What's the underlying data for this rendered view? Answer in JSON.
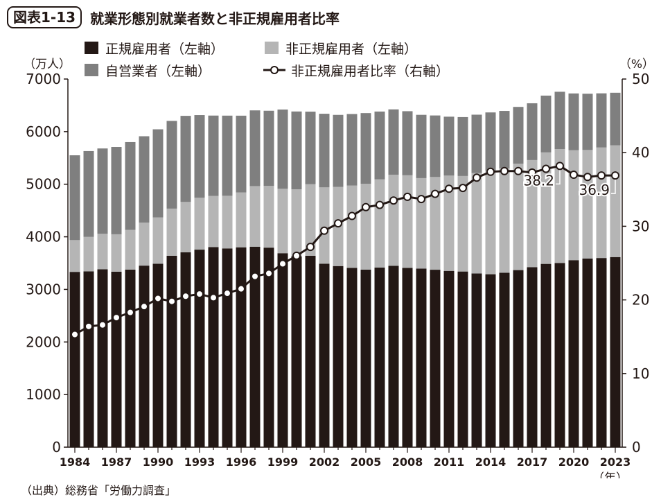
{
  "figure": {
    "badge": "図表1-13",
    "title": "就業形態別就業者数と非正規雇用者比率",
    "source": "（出典）総務省「労働力調査」"
  },
  "colors": {
    "regular": "#231815",
    "nonregular": "#b5b5b5",
    "selfemployed": "#7f7f7f",
    "ratio_line": "#231815"
  },
  "chart_data": {
    "type": "bar",
    "stacked": true,
    "left_axis": {
      "unit_label": "（万人）",
      "ylim": [
        0,
        7000
      ],
      "ticks": [
        0,
        1000,
        2000,
        3000,
        4000,
        5000,
        6000,
        7000
      ]
    },
    "right_axis": {
      "unit_label": "（%）",
      "ylim": [
        0,
        50
      ],
      "ticks": [
        0,
        10,
        20,
        30,
        40,
        50
      ]
    },
    "x_unit_label": "（年）",
    "x_tick_labels": [
      "1984",
      "1987",
      "1990",
      "1993",
      "1996",
      "1999",
      "2002",
      "2005",
      "2008",
      "2011",
      "2014",
      "2017",
      "2020",
      "2023"
    ],
    "legend_position": "top",
    "x": [
      1984,
      1985,
      1986,
      1987,
      1988,
      1989,
      1990,
      1991,
      1992,
      1993,
      1994,
      1995,
      1996,
      1997,
      1998,
      1999,
      2000,
      2001,
      2002,
      2003,
      2004,
      2005,
      2006,
      2007,
      2008,
      2009,
      2010,
      2011,
      2012,
      2013,
      2014,
      2015,
      2016,
      2017,
      2018,
      2019,
      2020,
      2021,
      2022,
      2023
    ],
    "series": [
      {
        "name": "正規雇用者（左軸）",
        "axis": "left",
        "kind": "bar",
        "values": [
          3333,
          3343,
          3383,
          3337,
          3377,
          3452,
          3488,
          3639,
          3705,
          3756,
          3805,
          3779,
          3800,
          3812,
          3794,
          3688,
          3630,
          3640,
          3489,
          3444,
          3410,
          3375,
          3415,
          3449,
          3410,
          3395,
          3374,
          3352,
          3340,
          3302,
          3288,
          3317,
          3367,
          3423,
          3485,
          3503,
          3556,
          3587,
          3597,
          3615
        ]
      },
      {
        "name": "非正規雇用者（左軸）",
        "axis": "left",
        "kind": "bar",
        "values": [
          604,
          655,
          674,
          711,
          755,
          817,
          881,
          897,
          958,
          986,
          971,
          1001,
          1043,
          1152,
          1173,
          1225,
          1273,
          1360,
          1451,
          1504,
          1564,
          1634,
          1677,
          1732,
          1760,
          1721,
          1763,
          1812,
          1816,
          1910,
          1967,
          1986,
          2023,
          2036,
          2120,
          2165,
          2090,
          2064,
          2101,
          2124
        ]
      },
      {
        "name": "自営業者（左軸）",
        "axis": "left",
        "kind": "bar",
        "values": [
          1613,
          1632,
          1623,
          1660,
          1669,
          1643,
          1675,
          1668,
          1637,
          1572,
          1529,
          1524,
          1460,
          1440,
          1430,
          1507,
          1480,
          1380,
          1400,
          1370,
          1361,
          1343,
          1290,
          1242,
          1218,
          1203,
          1170,
          1120,
          1120,
          1110,
          1110,
          1090,
          1080,
          1080,
          1080,
          1090,
          1080,
          1070,
          1030,
          1000
        ]
      },
      {
        "name": "非正規雇用者比率（右軸）",
        "axis": "right",
        "kind": "line",
        "values": [
          15.3,
          16.4,
          16.6,
          17.6,
          18.3,
          19.1,
          20.2,
          19.8,
          20.5,
          20.8,
          20.3,
          20.9,
          21.5,
          23.2,
          23.6,
          24.9,
          26.0,
          27.2,
          29.4,
          30.4,
          31.4,
          32.6,
          32.9,
          33.5,
          34.0,
          33.7,
          34.4,
          35.1,
          35.2,
          36.6,
          37.4,
          37.5,
          37.5,
          37.3,
          37.8,
          38.2,
          37.0,
          36.7,
          36.9,
          36.9
        ]
      }
    ],
    "annotations": [
      {
        "year": 2019,
        "text": "38.2"
      },
      {
        "year": 2023,
        "text": "36.9"
      }
    ]
  }
}
